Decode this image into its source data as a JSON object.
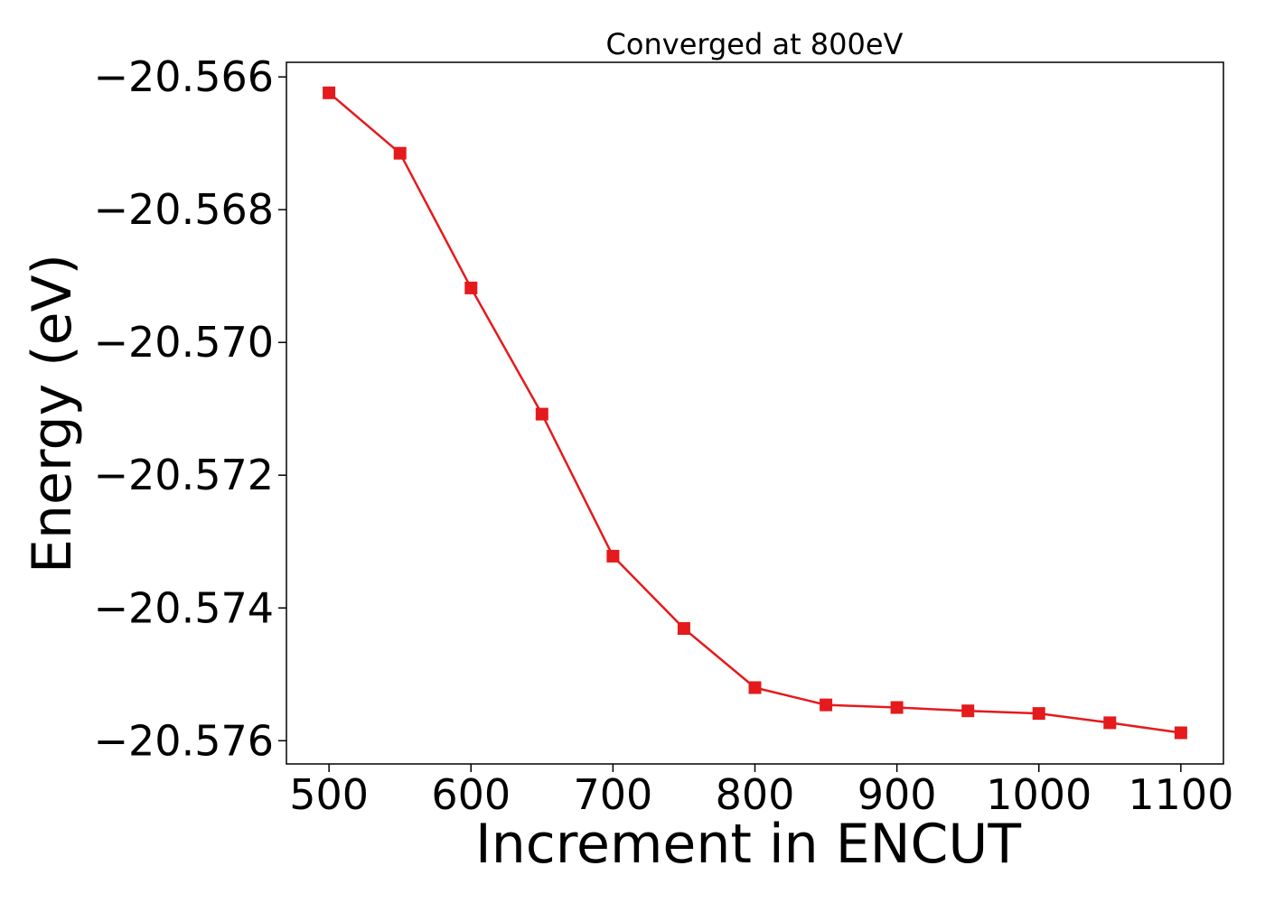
{
  "chart_data": {
    "type": "line",
    "title": "Converged at 800eV",
    "xlabel": "Increment in ENCUT",
    "ylabel": "Energy (eV)",
    "xlim": [
      470,
      1130
    ],
    "ylim": [
      -20.57635,
      -20.56578
    ],
    "x_ticks": [
      500,
      600,
      700,
      800,
      900,
      1000,
      1100
    ],
    "x_tick_labels": [
      "500",
      "600",
      "700",
      "800",
      "900",
      "1000",
      "1100"
    ],
    "y_ticks": [
      -20.566,
      -20.568,
      -20.57,
      -20.572,
      -20.574,
      -20.576
    ],
    "y_tick_labels": [
      "−20.566",
      "−20.568",
      "−20.570",
      "−20.572",
      "−20.574",
      "−20.576"
    ],
    "grid": false,
    "legend": "none",
    "series": [
      {
        "color": "#e41a1c",
        "marker": "square",
        "x": [
          500,
          550,
          600,
          650,
          700,
          750,
          800,
          850,
          900,
          950,
          1000,
          1050,
          1100
        ],
        "y": [
          -20.56624,
          -20.56715,
          -20.56918,
          -20.57108,
          -20.57322,
          -20.57431,
          -20.5752,
          -20.57546,
          -20.5755,
          -20.57555,
          -20.57559,
          -20.57573,
          -20.57588
        ]
      }
    ]
  }
}
